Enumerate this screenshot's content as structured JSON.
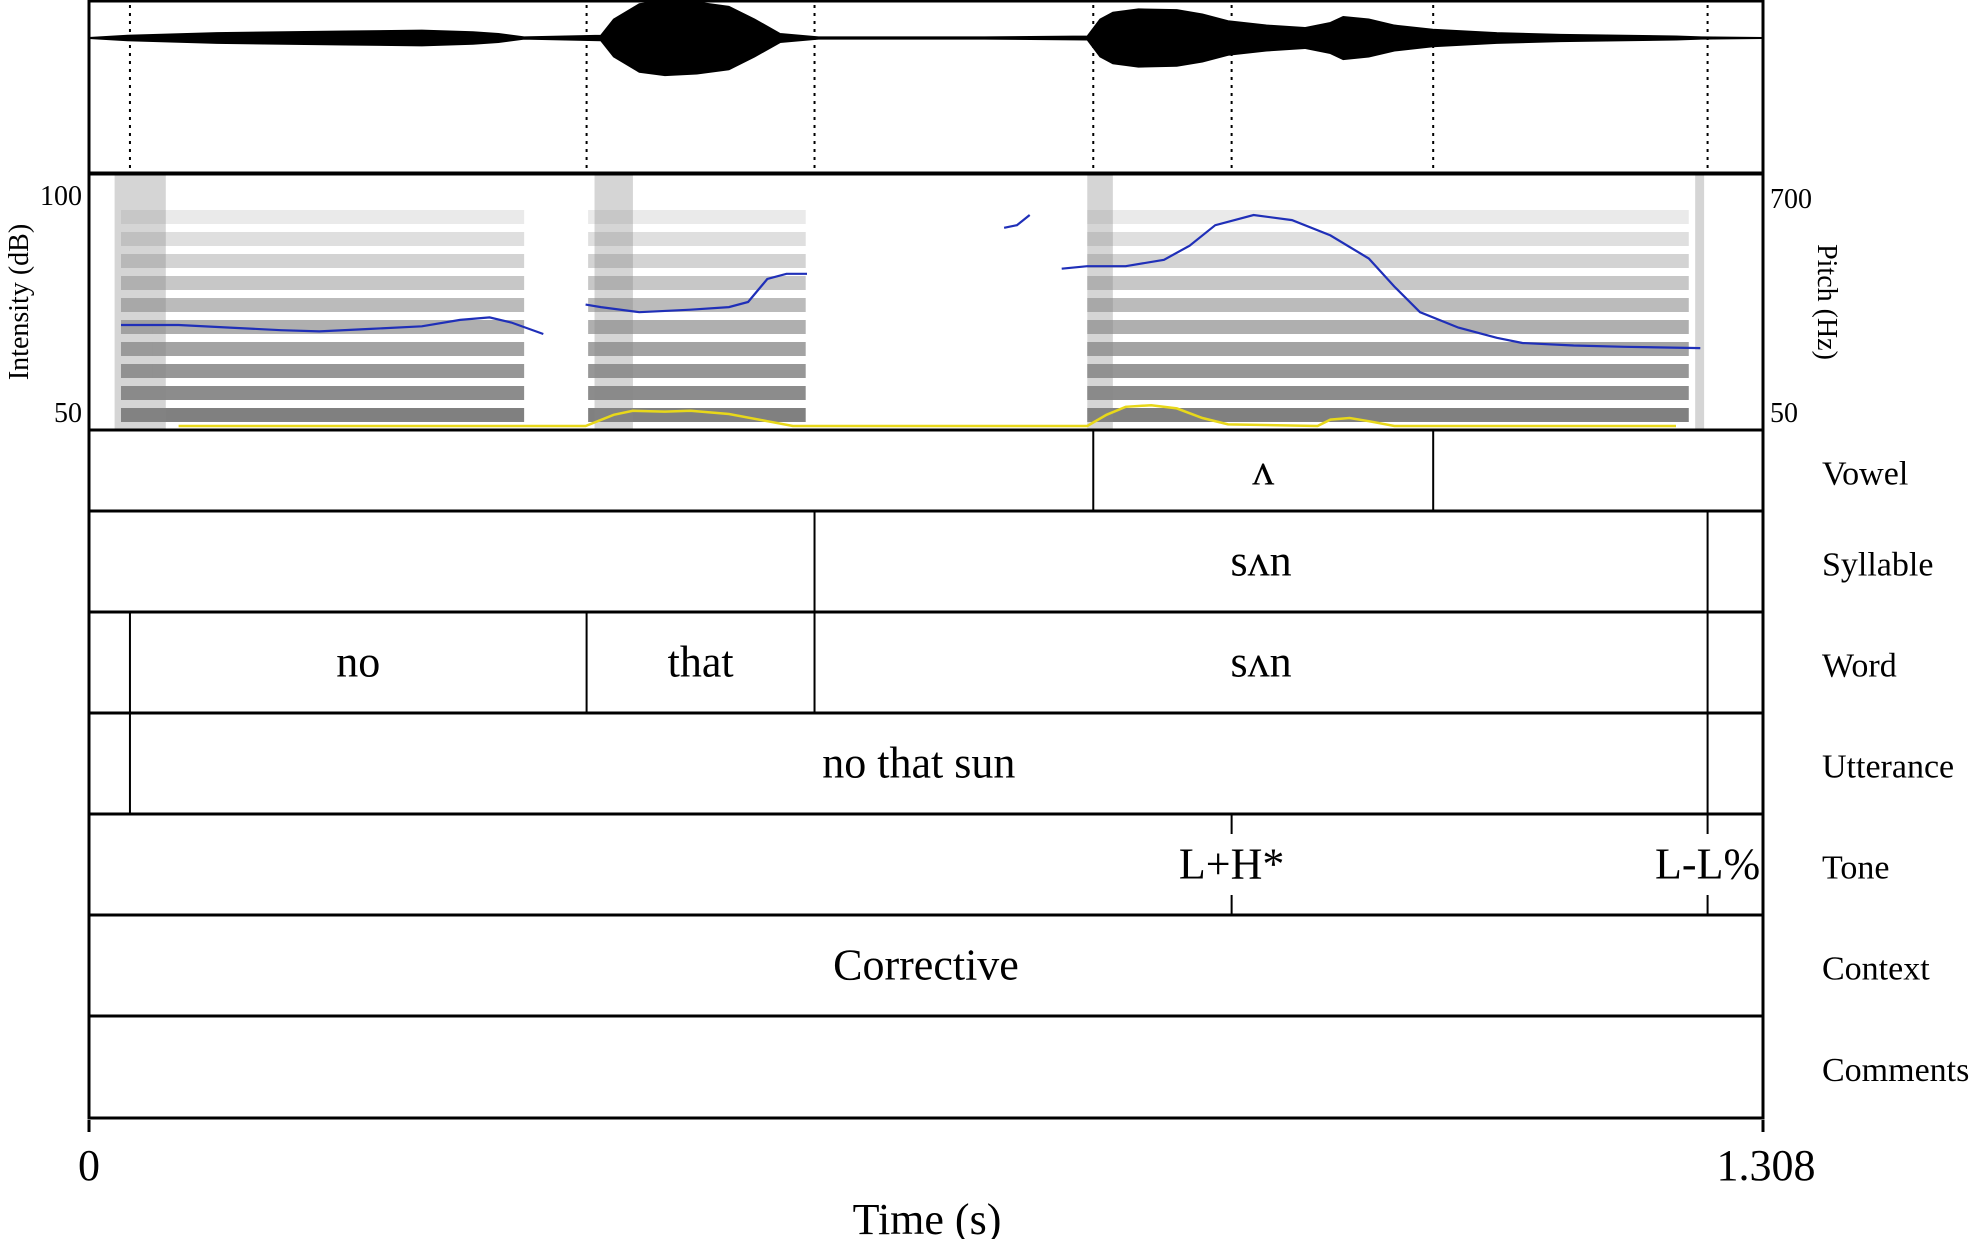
{
  "time_axis": {
    "start": "0",
    "end": "1.308",
    "label": "Time (s)",
    "duration": 1.308
  },
  "intensity_axis": {
    "label": "Intensity (dB)",
    "max": "100",
    "min": "50"
  },
  "pitch_axis": {
    "label": "Pitch (Hz)",
    "max": "700",
    "min": "50"
  },
  "tiers": [
    {
      "name": "Vowel",
      "boundaries": [
        0.7847,
        1.0503
      ],
      "labels": [
        {
          "text": "ʌ",
          "start": 0.7847,
          "end": 1.0503
        }
      ]
    },
    {
      "name": "Syllable",
      "boundaries": [
        0.5669,
        1.2647
      ],
      "labels": [
        {
          "text": "sʌn",
          "start": 0.5669,
          "end": 1.2647
        }
      ]
    },
    {
      "name": "Word",
      "boundaries": [
        0.032,
        0.3888,
        0.5669,
        1.2647
      ],
      "labels": [
        {
          "text": "no",
          "start": 0.032,
          "end": 0.3888
        },
        {
          "text": "that",
          "start": 0.3888,
          "end": 0.5669
        },
        {
          "text": "sʌn",
          "start": 0.5669,
          "end": 1.2647
        }
      ]
    },
    {
      "name": "Utterance",
      "boundaries": [
        0.032,
        1.2647
      ],
      "labels": [
        {
          "text": "no that sun",
          "start": 0.032,
          "end": 1.2647
        }
      ]
    },
    {
      "name": "Tone",
      "points": [
        {
          "time": 0.8928,
          "label": "L+H*"
        },
        {
          "time": 1.2647,
          "label": "L-L%"
        }
      ]
    },
    {
      "name": "Context",
      "boundaries": [],
      "labels": [
        {
          "text": "Corrective",
          "start": 0,
          "end": 1.308
        }
      ]
    },
    {
      "name": "Comments",
      "boundaries": [],
      "labels": []
    }
  ],
  "pitch_track": [
    [
      [
        0.025,
        0.41
      ],
      [
        0.07,
        0.41
      ],
      [
        0.11,
        0.4
      ],
      [
        0.15,
        0.39
      ],
      [
        0.18,
        0.385
      ],
      [
        0.22,
        0.395
      ],
      [
        0.26,
        0.405
      ],
      [
        0.29,
        0.43
      ],
      [
        0.313,
        0.44
      ],
      [
        0.33,
        0.42
      ],
      [
        0.355,
        0.375
      ]
    ],
    [
      [
        0.388,
        0.49
      ],
      [
        0.4,
        0.48
      ],
      [
        0.43,
        0.46
      ],
      [
        0.47,
        0.47
      ],
      [
        0.5,
        0.48
      ],
      [
        0.515,
        0.5
      ],
      [
        0.53,
        0.59
      ],
      [
        0.545,
        0.61
      ],
      [
        0.561,
        0.61
      ]
    ],
    [
      [
        0.715,
        0.79
      ],
      [
        0.725,
        0.8
      ],
      [
        0.735,
        0.84
      ]
    ],
    [
      [
        0.76,
        0.63
      ],
      [
        0.78,
        0.64
      ],
      [
        0.81,
        0.64
      ],
      [
        0.84,
        0.665
      ],
      [
        0.86,
        0.72
      ],
      [
        0.88,
        0.8
      ],
      [
        0.91,
        0.84
      ],
      [
        0.94,
        0.82
      ],
      [
        0.97,
        0.76
      ],
      [
        1.0,
        0.67
      ],
      [
        1.02,
        0.56
      ],
      [
        1.04,
        0.46
      ],
      [
        1.07,
        0.4
      ],
      [
        1.1,
        0.36
      ],
      [
        1.12,
        0.34
      ],
      [
        1.16,
        0.33
      ],
      [
        1.2,
        0.325
      ],
      [
        1.259,
        0.32
      ]
    ]
  ],
  "intensity_track": [
    [
      0.07,
      0.0
    ],
    [
      0.388,
      0.0
    ],
    [
      0.41,
      0.07
    ],
    [
      0.425,
      0.095
    ],
    [
      0.45,
      0.09
    ],
    [
      0.47,
      0.095
    ],
    [
      0.5,
      0.075
    ],
    [
      0.53,
      0.03
    ],
    [
      0.55,
      0.0
    ],
    [
      0.78,
      0.0
    ],
    [
      0.795,
      0.07
    ],
    [
      0.81,
      0.12
    ],
    [
      0.83,
      0.13
    ],
    [
      0.85,
      0.11
    ],
    [
      0.87,
      0.05
    ],
    [
      0.89,
      0.01
    ],
    [
      0.96,
      0.0
    ],
    [
      0.97,
      0.04
    ],
    [
      0.985,
      0.05
    ],
    [
      1.0,
      0.03
    ],
    [
      1.02,
      0.0
    ],
    [
      1.24,
      0.0
    ]
  ],
  "waveform_envelope": [
    [
      0.0,
      0.004
    ],
    [
      0.03,
      0.03
    ],
    [
      0.1,
      0.06
    ],
    [
      0.2,
      0.08
    ],
    [
      0.26,
      0.09
    ],
    [
      0.3,
      0.07
    ],
    [
      0.32,
      0.05
    ],
    [
      0.34,
      0.01
    ],
    [
      0.4,
      0.03
    ],
    [
      0.41,
      0.22
    ],
    [
      0.43,
      0.4
    ],
    [
      0.45,
      0.44
    ],
    [
      0.475,
      0.42
    ],
    [
      0.5,
      0.37
    ],
    [
      0.52,
      0.22
    ],
    [
      0.54,
      0.05
    ],
    [
      0.57,
      0.01
    ],
    [
      0.7,
      0.01
    ],
    [
      0.78,
      0.02
    ],
    [
      0.79,
      0.22
    ],
    [
      0.8,
      0.3
    ],
    [
      0.82,
      0.34
    ],
    [
      0.85,
      0.33
    ],
    [
      0.87,
      0.28
    ],
    [
      0.89,
      0.2
    ],
    [
      0.92,
      0.15
    ],
    [
      0.95,
      0.12
    ],
    [
      0.97,
      0.18
    ],
    [
      0.98,
      0.25
    ],
    [
      1.0,
      0.22
    ],
    [
      1.02,
      0.15
    ],
    [
      1.05,
      0.1
    ],
    [
      1.1,
      0.06
    ],
    [
      1.15,
      0.04
    ],
    [
      1.2,
      0.03
    ],
    [
      1.24,
      0.02
    ],
    [
      1.26,
      0.01
    ],
    [
      1.308,
      0.004
    ]
  ],
  "waveform_dotted_lines": [
    0.032,
    0.3888,
    0.5669,
    0.7847,
    0.8928,
    1.0503,
    1.2647
  ],
  "colors": {
    "pitch": "#1f2fb8",
    "intensity": "#e8d81a",
    "ink": "#000000"
  }
}
